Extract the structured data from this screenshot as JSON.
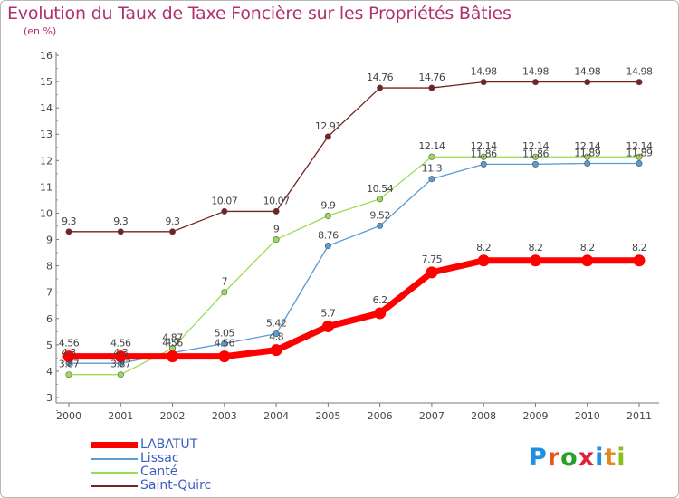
{
  "chart_data": {
    "type": "line",
    "title": "Evolution du Taux de Taxe Foncière sur les Propriétés Bâties",
    "subtitle": "(en %)",
    "xlabel": "",
    "ylabel": "",
    "ylim": [
      3,
      16
    ],
    "yticks": [
      3,
      4,
      5,
      6,
      7,
      8,
      9,
      10,
      11,
      12,
      13,
      14,
      15,
      16
    ],
    "categories": [
      "2000",
      "2001",
      "2002",
      "2003",
      "2004",
      "2005",
      "2006",
      "2007",
      "2008",
      "2009",
      "2010",
      "2011"
    ],
    "grid": false,
    "series": [
      {
        "name": "LABATUT",
        "color": "#ff0000",
        "thick": true,
        "values": [
          4.56,
          4.56,
          4.56,
          4.56,
          4.8,
          5.7,
          6.2,
          7.75,
          8.2,
          8.2,
          8.2,
          8.2
        ],
        "labels": [
          "4.56",
          "4.56",
          "4.56",
          "4.56",
          "4.8",
          "5.7",
          "6.2",
          "7.75",
          "8.2",
          "8.2",
          "8.2",
          "8.2"
        ]
      },
      {
        "name": "Lissac",
        "color": "#5b9bd5",
        "thick": false,
        "values": [
          4.3,
          4.3,
          4.7,
          5.05,
          5.42,
          8.76,
          9.52,
          11.3,
          11.86,
          11.86,
          11.89,
          11.89
        ],
        "labels": [
          "4.3",
          "4.3",
          "4.7",
          "5.05",
          "5.42",
          "8.76",
          "9.52",
          "11.3",
          "11.86",
          "11.86",
          "11.89",
          "11.89"
        ]
      },
      {
        "name": "Canté",
        "color": "#99dd55",
        "thick": false,
        "values": [
          3.87,
          3.87,
          4.87,
          7,
          9,
          9.9,
          10.54,
          12.14,
          12.14,
          12.14,
          12.14,
          12.14
        ],
        "labels": [
          "3.87",
          "3.87",
          "4.87",
          "7",
          "9",
          "9.9",
          "10.54",
          "12.14",
          "12.14",
          "12.14",
          "12.14",
          "12.14"
        ]
      },
      {
        "name": "Saint-Quirc",
        "color": "#772222",
        "thick": false,
        "values": [
          9.3,
          9.3,
          9.3,
          10.07,
          10.07,
          12.91,
          14.76,
          14.76,
          14.98,
          14.98,
          14.98,
          14.98
        ],
        "labels": [
          "9.3",
          "9.3",
          "9.3",
          "10.07",
          "10.07",
          "12.91",
          "14.76",
          "14.76",
          "14.98",
          "14.98",
          "14.98",
          "14.98"
        ]
      }
    ],
    "legend_position": "bottom-left"
  },
  "logo": {
    "text": "Proxiti",
    "letters": [
      "P",
      "r",
      "o",
      "x",
      "i",
      "t",
      "i"
    ],
    "colors": [
      "#1f8fe0",
      "#e05a1f",
      "#2aa02a",
      "#e01f3a",
      "#1f8fe0",
      "#e08a1f",
      "#88c020"
    ]
  }
}
